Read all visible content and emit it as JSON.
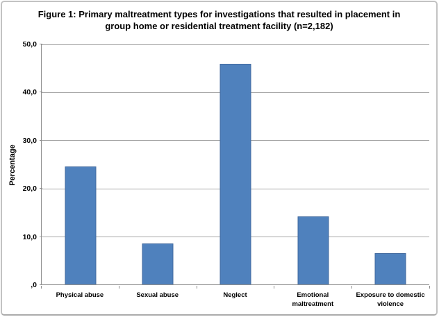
{
  "chart_data": {
    "type": "bar",
    "title": "Figure 1: Primary maltreatment types for investigations that resulted in placement in group home or residential treatment facility (n=2,182)",
    "categories": [
      "Physical abuse",
      "Sexual abuse",
      "Neglect",
      "Emotional maltreatment",
      "Exposure to domestic violence"
    ],
    "values": [
      24.6,
      8.5,
      46.0,
      14.2,
      6.5
    ],
    "xlabel": "",
    "ylabel": "Percentage",
    "ylim": [
      0,
      50
    ],
    "ytick_interval": 10,
    "ytick_labels_bottom_up": [
      ",0",
      "10,0",
      "20,0",
      "30,0",
      "40,0",
      "50,0"
    ],
    "grid": true,
    "legend_position": "none",
    "bar_color": "#4f81bd",
    "bar_border_color": "#41699e",
    "gridline_color": "#a6a6a6",
    "axis_color": "#8e8e8e",
    "frame_color": "#c3c3c3",
    "text_color": "#000000"
  }
}
